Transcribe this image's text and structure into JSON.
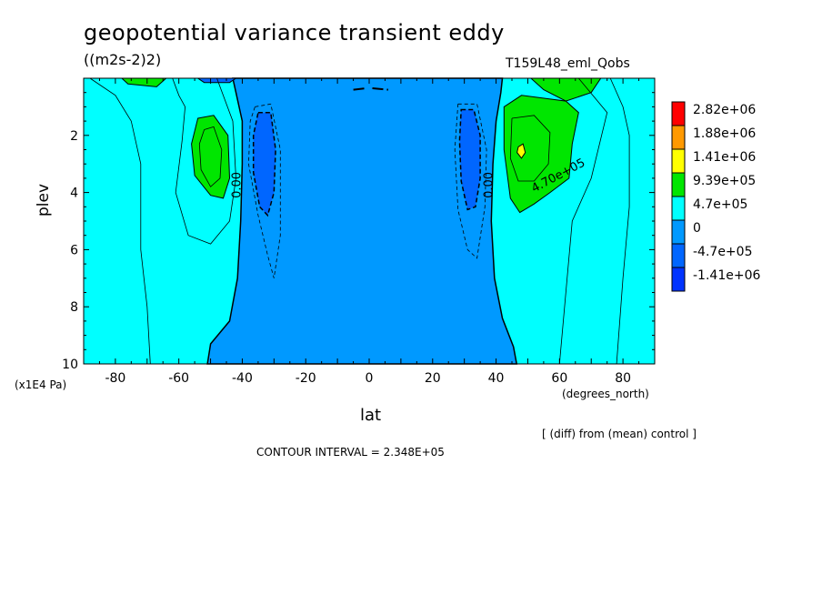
{
  "chart_data": {
    "type": "heatmap",
    "subtype": "filled-contour",
    "title": "geopotential variance transient eddy",
    "units": "((m2s-2)2)",
    "run_label": "T159L48_eml_Qobs",
    "xlabel": "lat",
    "x_unit": "(degrees_north)",
    "ylabel": "plev",
    "y_unit": "(x1E4 Pa)",
    "xlim": [
      -90,
      90
    ],
    "ylim": [
      10,
      0
    ],
    "x_ticks": [
      "-80",
      "-60",
      "-40",
      "-20",
      "0",
      "20",
      "40",
      "60",
      "80"
    ],
    "y_ticks": [
      "2",
      "4",
      "6",
      "8",
      "10"
    ],
    "legend_levels": [
      "2.82e+06",
      "1.88e+06",
      "1.41e+06",
      "9.39e+05",
      "4.7e+05",
      "0",
      "-4.7e+05",
      "-1.41e+06"
    ],
    "legend_colors": [
      "#ff0000",
      "#ff9900",
      "#ffff00",
      "#00e600",
      "#00ffff",
      "#0099ff",
      "#0066ff",
      "#0033ff"
    ],
    "contour_labels": [
      "0.00",
      "0.00",
      "4.70e+05"
    ],
    "note": "[ (diff) from (mean) control ]",
    "contour_interval": "CONTOUR INTERVAL = 2.348E+05",
    "legend_position": "right"
  }
}
